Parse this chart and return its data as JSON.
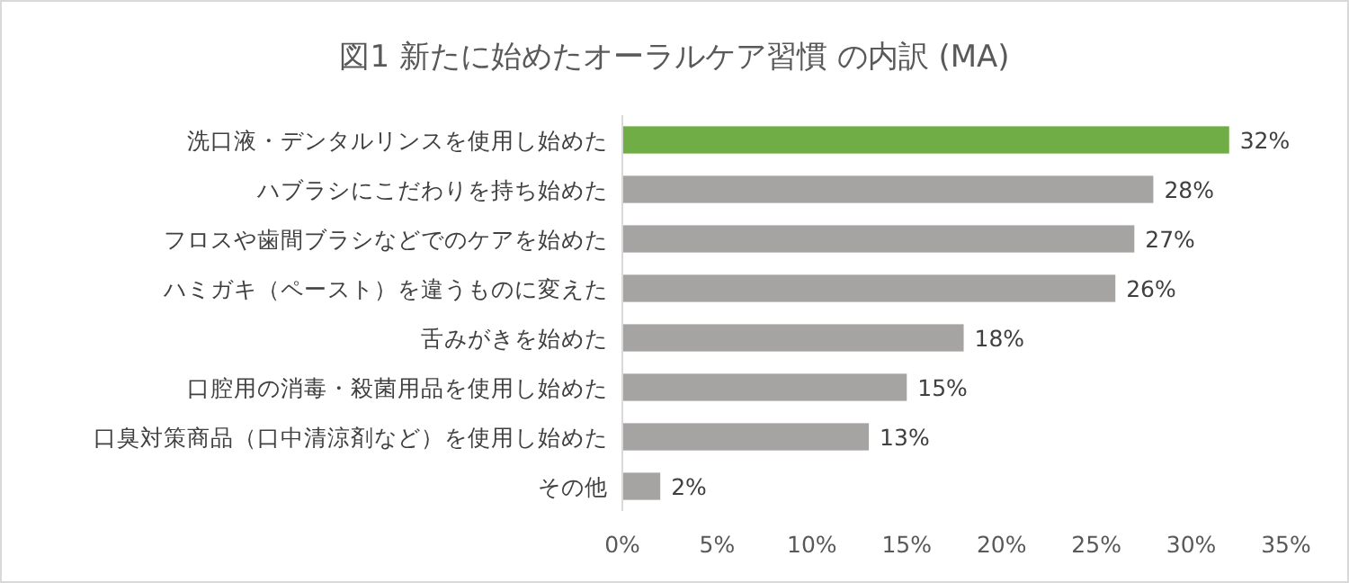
{
  "chart_data": {
    "type": "bar",
    "orientation": "horizontal",
    "title": "図1 新たに始めたオーラルケア習慣 の内訳 (MA)",
    "categories": [
      "洗口液・デンタルリンスを使用し始めた",
      "ハブラシにこだわりを持ち始めた",
      "フロスや歯間ブラシなどでのケアを始めた",
      "ハミガキ（ペースト）を違うものに変えた",
      "舌みがきを始めた",
      "口腔用の消毒・殺菌用品を使用し始めた",
      "口臭対策商品（口中清涼剤など）を使用し始めた",
      "その他"
    ],
    "values": [
      32,
      28,
      27,
      26,
      18,
      15,
      13,
      2
    ],
    "value_labels": [
      "32%",
      "28%",
      "27%",
      "26%",
      "18%",
      "15%",
      "13%",
      "2%"
    ],
    "colors": [
      "#70ad47",
      "#a6a3a3",
      "#a6a3a3",
      "#a6a3a3",
      "#a6a3a3",
      "#a6a3a3",
      "#a6a3a3",
      "#a6a3a3"
    ],
    "xlim": [
      0,
      35
    ],
    "xticks": [
      {
        "value": 0,
        "label": "0%"
      },
      {
        "value": 5,
        "label": "5%"
      },
      {
        "value": 10,
        "label": "10%"
      },
      {
        "value": 15,
        "label": "15%"
      },
      {
        "value": 20,
        "label": "20%"
      },
      {
        "value": 25,
        "label": "25%"
      },
      {
        "value": 30,
        "label": "30%"
      },
      {
        "value": 35,
        "label": "35%"
      }
    ],
    "grid": false
  }
}
